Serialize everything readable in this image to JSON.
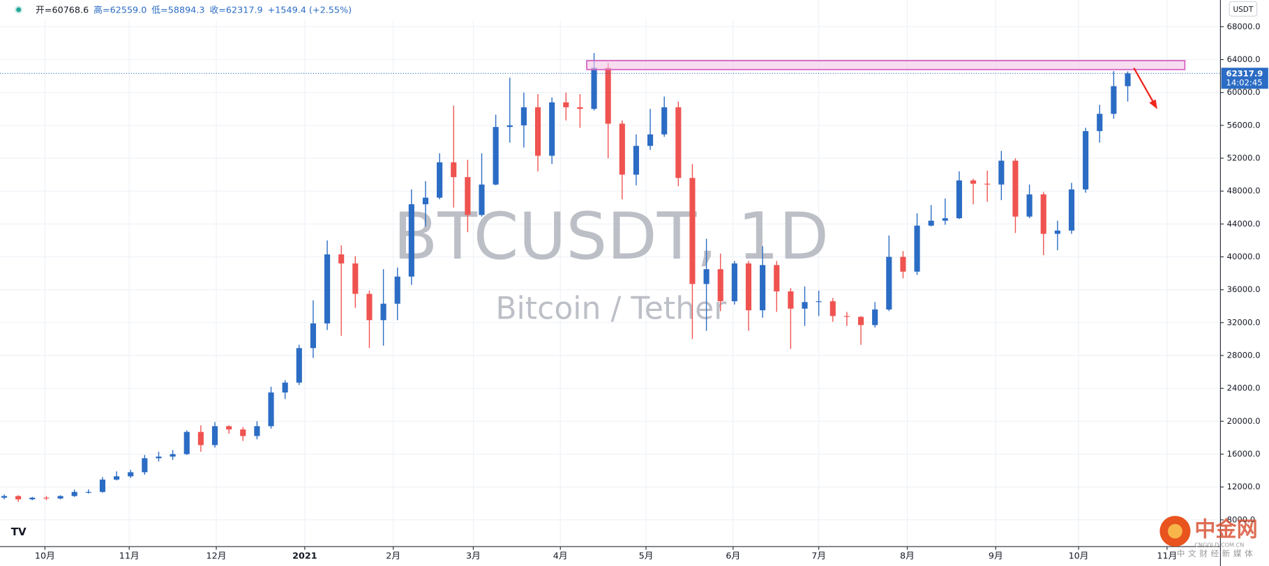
{
  "chart_data": {
    "type": "candlestick",
    "header": [
      "开=60768.6",
      "高=62559.0",
      "低=58894.3",
      "收=62317.9",
      "+1549.4 (+2.55%)"
    ],
    "watermark": "BTCUSDT, 1D",
    "watermark_sub": "Bitcoin / Tether",
    "currency": "USDT",
    "countdown": "14:02:45",
    "brand": [
      "中金网",
      "CNGOLD.COM.CN",
      "中文财经新媒体"
    ],
    "up_color": "#2b6cc4",
    "down_color": "#ef5350",
    "grid": true,
    "open": [
      10700,
      10900,
      10500,
      10700,
      10600,
      10900,
      11400,
      11400,
      12900,
      13300,
      13800,
      15500,
      15700,
      16000,
      18700,
      17100,
      19400,
      19000,
      18200,
      19400,
      23500,
      24700,
      28900,
      31900,
      40300,
      39200,
      35500,
      32300,
      34300,
      37600,
      46400,
      47200,
      51500,
      49700,
      45100,
      48800,
      55800,
      56000,
      58200,
      52300,
      58800,
      58200,
      58000,
      63000,
      56200,
      50000,
      53500,
      54900,
      58200,
      49600,
      36700,
      38500,
      34600,
      39200,
      33500,
      39000,
      35800,
      33700,
      34500,
      34600,
      32800,
      32700,
      31700,
      33600,
      40000,
      38200,
      43800,
      44400,
      44700,
      49300,
      48900,
      48800,
      51700,
      44900,
      47600,
      42800,
      43200,
      48200,
      55300,
      57400,
      60768.6
    ],
    "high": [
      11100,
      11000,
      10800,
      10900,
      11000,
      11700,
      11700,
      13200,
      13900,
      14100,
      15900,
      16300,
      16500,
      18900,
      19500,
      19900,
      19500,
      19300,
      20000,
      24200,
      25000,
      29300,
      34700,
      42000,
      41400,
      40100,
      35900,
      38500,
      38700,
      48200,
      49200,
      52600,
      58400,
      51800,
      52600,
      57300,
      61800,
      60000,
      59800,
      59400,
      60000,
      59800,
      64800,
      63600,
      56600,
      54900,
      58000,
      59500,
      58900,
      51300,
      42200,
      40400,
      39500,
      39500,
      41300,
      39500,
      36200,
      36400,
      35900,
      35000,
      33300,
      32800,
      34500,
      42600,
      40700,
      45300,
      46300,
      47100,
      50400,
      49500,
      50500,
      52900,
      52000,
      48800,
      47900,
      44400,
      49000,
      55700,
      58500,
      62600,
      62559.0
    ],
    "low": [
      10500,
      10200,
      10400,
      10400,
      10500,
      10800,
      11200,
      11300,
      12800,
      13100,
      13500,
      15100,
      15300,
      15900,
      16300,
      16800,
      18500,
      17600,
      17800,
      19100,
      22700,
      24400,
      27700,
      31100,
      30400,
      33800,
      28900,
      29200,
      32300,
      36600,
      43700,
      47000,
      46000,
      43000,
      44900,
      48700,
      53900,
      53300,
      50400,
      51300,
      56600,
      55700,
      57800,
      52000,
      47000,
      48700,
      53000,
      54600,
      48600,
      30000,
      31000,
      33400,
      34200,
      31000,
      32600,
      33300,
      28800,
      31600,
      32800,
      32100,
      31600,
      29300,
      31400,
      33400,
      37400,
      37800,
      43700,
      43900,
      44600,
      46400,
      46700,
      46900,
      42900,
      44700,
      40200,
      40800,
      42800,
      47800,
      53900,
      56800,
      58894.3
    ],
    "close": [
      10900,
      10500,
      10700,
      10600,
      10900,
      11400,
      11400,
      12900,
      13300,
      13800,
      15500,
      15700,
      16000,
      18700,
      17100,
      19400,
      19000,
      18200,
      19400,
      23500,
      24700,
      28900,
      31900,
      40300,
      39200,
      35500,
      32300,
      34300,
      37600,
      46400,
      47200,
      51500,
      49700,
      45100,
      48800,
      55800,
      56000,
      58200,
      52300,
      58800,
      58200,
      58000,
      63000,
      56200,
      50000,
      53500,
      54900,
      58200,
      49600,
      36700,
      38500,
      34600,
      39200,
      33500,
      39000,
      35800,
      33700,
      34500,
      34600,
      32800,
      32700,
      31700,
      33600,
      40000,
      38200,
      43800,
      44400,
      44700,
      49300,
      48900,
      48800,
      51700,
      44900,
      47600,
      42800,
      43200,
      48200,
      55300,
      57400,
      60768.6,
      62317.9
    ],
    "xlim": [
      -0.3,
      86.6
    ],
    "xticks": [
      {
        "value": 2.9,
        "label": "10月"
      },
      {
        "value": 8.9,
        "label": "11月"
      },
      {
        "value": 15.1,
        "label": "12月"
      },
      {
        "value": 21.4,
        "label": "2021"
      },
      {
        "value": 27.7,
        "label": "2月"
      },
      {
        "value": 33.4,
        "label": "3月"
      },
      {
        "value": 39.6,
        "label": "4月"
      },
      {
        "value": 45.7,
        "label": "5月"
      },
      {
        "value": 51.9,
        "label": "6月"
      },
      {
        "value": 58.0,
        "label": "7月"
      },
      {
        "value": 64.3,
        "label": "8月"
      },
      {
        "value": 70.6,
        "label": "9月"
      },
      {
        "value": 76.5,
        "label": "10月"
      },
      {
        "value": 82.8,
        "label": "11月"
      }
    ],
    "ylim": [
      4750,
      71250
    ],
    "yticks": [
      {
        "value": 8000,
        "label": "8000.0"
      },
      {
        "value": 12000,
        "label": "12000.0"
      },
      {
        "value": 16000,
        "label": "16000.0"
      },
      {
        "value": 20000,
        "label": "20000.0"
      },
      {
        "value": 24000,
        "label": "24000.0"
      },
      {
        "value": 28000,
        "label": "28000.0"
      },
      {
        "value": 32000,
        "label": "32000.0"
      },
      {
        "value": 36000,
        "label": "36000.0"
      },
      {
        "value": 40000,
        "label": "40000.0"
      },
      {
        "value": 44000,
        "label": "44000.0"
      },
      {
        "value": 48000,
        "label": "48000.0"
      },
      {
        "value": 52000,
        "label": "52000.0"
      },
      {
        "value": 56000,
        "label": "56000.0"
      },
      {
        "value": 60000,
        "label": "60000.0"
      },
      {
        "value": 64000,
        "label": "64000.0"
      },
      {
        "value": 68000,
        "label": "68000.0"
      }
    ]
  }
}
